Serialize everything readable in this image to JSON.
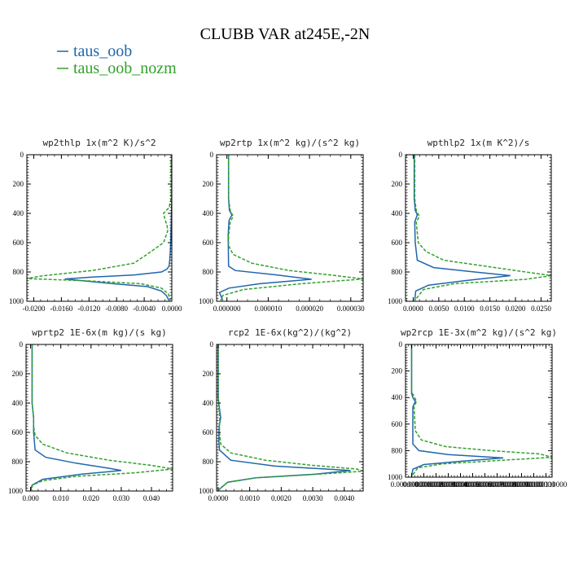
{
  "figure_title": "CLUBB VAR at245E,-2N",
  "legend": [
    {
      "label": "taus_oob",
      "color": "#2166ac"
    },
    {
      "label": "taus_oob_nozm",
      "color": "#33a02c"
    }
  ],
  "chart_data": [
    {
      "type": "line",
      "title": "wp2thlp  1x(m^2 K)/s^2",
      "xlim": [
        -0.021,
        0.0
      ],
      "ylim": [
        1000,
        0
      ],
      "xticks": [
        -0.02,
        -0.016,
        -0.012,
        -0.008,
        -0.004,
        0.0
      ],
      "xtick_labels": [
        "-0.0200",
        "-0.0160",
        "-0.0120",
        "-0.0080",
        "-0.0040",
        "0.0000"
      ],
      "yticks": [
        0,
        200,
        400,
        600,
        800,
        1000
      ],
      "ytick_labels": [
        "0",
        "200",
        "400",
        "600",
        "800",
        "1000"
      ],
      "series": [
        {
          "name": "taus_oob",
          "style": "solid",
          "x": [
            0,
            0,
            -0.0001,
            -0.0002,
            -0.0003,
            -0.0004,
            -0.0007,
            -0.0015,
            -0.0054,
            -0.0115,
            -0.0155,
            -0.0085,
            -0.0035,
            -0.0015,
            -0.0008,
            -0.0004
          ],
          "y": [
            0,
            300,
            500,
            650,
            720,
            760,
            780,
            800,
            820,
            835,
            848,
            880,
            900,
            930,
            960,
            995
          ]
        },
        {
          "name": "taus_oob_nozm",
          "style": "dashed",
          "x": [
            -0.0001,
            -0.0001,
            -0.0004,
            -0.0012,
            -0.001,
            -0.0007,
            -0.0006,
            -0.0012,
            -0.0024,
            -0.0036,
            -0.0055,
            -0.0115,
            -0.0185,
            -0.0211,
            -0.0125,
            -0.0045,
            -0.0015,
            -0.0005,
            -0.0002
          ],
          "y": [
            0,
            300,
            360,
            400,
            440,
            480,
            520,
            600,
            640,
            680,
            740,
            790,
            825,
            845,
            860,
            880,
            910,
            950,
            995
          ]
        }
      ]
    },
    {
      "type": "line",
      "title": "wp2rtp  1x(m^2 kg)/(s^2 kg)",
      "xlim": [
        -2.5e-06,
        3.3e-05
      ],
      "ylim": [
        1000,
        0
      ],
      "xticks": [
        0.0,
        1e-05,
        2e-05,
        3e-05
      ],
      "xtick_labels": [
        "0.000000",
        "0.000010",
        "0.000020",
        "0.000030"
      ],
      "yticks": [
        0,
        200,
        400,
        600,
        800,
        1000
      ],
      "ytick_labels": [
        "0",
        "200",
        "400",
        "600",
        "800",
        "1000"
      ],
      "series": [
        {
          "name": "taus_oob",
          "style": "solid",
          "x": [
            4e-07,
            4e-07,
            6e-07,
            1.2e-06,
            5e-07,
            3e-07,
            4e-07,
            2e-06,
            1.2e-05,
            2.05e-05,
            8e-06,
            5e-07,
            -1.8e-06,
            -1e-06
          ],
          "y": [
            0,
            300,
            380,
            410,
            450,
            550,
            760,
            790,
            820,
            850,
            880,
            910,
            940,
            995
          ]
        },
        {
          "name": "taus_oob_nozm",
          "style": "dashed",
          "x": [
            4e-07,
            4e-07,
            8e-07,
            1.5e-06,
            8e-07,
            4e-07,
            4e-07,
            1.5e-06,
            6e-06,
            1.5e-05,
            2.5e-05,
            3.3e-05,
            1.8e-05,
            4e-06,
            -1e-06,
            -1.5e-06
          ],
          "y": [
            0,
            300,
            380,
            420,
            460,
            550,
            620,
            680,
            740,
            790,
            820,
            848,
            880,
            920,
            960,
            995
          ]
        }
      ]
    },
    {
      "type": "line",
      "title": "wpthlp2  1x(m K^2)/s",
      "xlim": [
        -0.0015,
        0.027
      ],
      "ylim": [
        1000,
        0
      ],
      "xticks": [
        0.0,
        0.005,
        0.01,
        0.015,
        0.02,
        0.025
      ],
      "xtick_labels": [
        "0.0000",
        "0.0050",
        "0.0100",
        "0.0150",
        "0.0200",
        "0.0250"
      ],
      "yticks": [
        0,
        200,
        400,
        600,
        800,
        1000
      ],
      "ytick_labels": [
        "0",
        "200",
        "400",
        "600",
        "800",
        "1000"
      ],
      "series": [
        {
          "name": "taus_oob",
          "style": "solid",
          "x": [
            0.0002,
            0.0002,
            0.0004,
            0.0008,
            0.0003,
            0.0004,
            0.0008,
            0.004,
            0.012,
            0.019,
            0.01,
            0.003,
            0.0005,
            0.0003
          ],
          "y": [
            0,
            300,
            380,
            410,
            460,
            600,
            720,
            770,
            800,
            825,
            860,
            890,
            930,
            995
          ]
        },
        {
          "name": "taus_oob_nozm",
          "style": "dashed",
          "x": [
            0.0003,
            0.0003,
            0.0006,
            0.0012,
            0.0006,
            0.001,
            0.0025,
            0.006,
            0.014,
            0.022,
            0.027,
            0.022,
            0.008,
            0.002,
            0.0003
          ],
          "y": [
            0,
            300,
            380,
            420,
            460,
            600,
            660,
            720,
            760,
            800,
            825,
            850,
            880,
            920,
            995
          ]
        }
      ]
    },
    {
      "type": "line",
      "title": "wprtp2  1E-6x(m kg)/(s kg)",
      "xlim": [
        -0.0015,
        0.047
      ],
      "ylim": [
        1000,
        0
      ],
      "xticks": [
        0.0,
        0.01,
        0.02,
        0.03,
        0.04
      ],
      "xtick_labels": [
        "0.000",
        "0.010",
        "0.020",
        "0.030",
        "0.040"
      ],
      "yticks": [
        0,
        200,
        400,
        600,
        800,
        1000
      ],
      "ytick_labels": [
        "0",
        "200",
        "400",
        "600",
        "800",
        "1000"
      ],
      "series": [
        {
          "name": "taus_oob",
          "style": "solid",
          "x": [
            0.0005,
            0.0005,
            0.001,
            0.001,
            0.0015,
            0.005,
            0.015,
            0.026,
            0.03,
            0.017,
            0.004,
            0.0005,
            0.0
          ],
          "y": [
            0,
            400,
            500,
            600,
            720,
            770,
            810,
            845,
            860,
            885,
            920,
            960,
            995
          ]
        },
        {
          "name": "taus_oob_nozm",
          "style": "dashed",
          "x": [
            0.0005,
            0.0005,
            0.001,
            0.001,
            0.0015,
            0.004,
            0.012,
            0.026,
            0.04,
            0.047,
            0.035,
            0.015,
            0.004,
            0.0006,
            0.0003
          ],
          "y": [
            0,
            400,
            500,
            560,
            620,
            680,
            740,
            790,
            825,
            850,
            875,
            900,
            930,
            960,
            995
          ]
        }
      ]
    },
    {
      "type": "line",
      "title": "rcp2  1E-6x(kg^2)/(kg^2)",
      "xlim": [
        -5e-05,
        0.0046
      ],
      "ylim": [
        1000,
        0
      ],
      "xticks": [
        0.0,
        0.001,
        0.002,
        0.003,
        0.004
      ],
      "xtick_labels": [
        "0.0000",
        "0.0010",
        "0.0020",
        "0.0030",
        "0.0040"
      ],
      "yticks": [
        0,
        200,
        400,
        600,
        800,
        1000
      ],
      "ytick_labels": [
        "0",
        "200",
        "400",
        "600",
        "800",
        "1000"
      ],
      "series": [
        {
          "name": "taus_oob",
          "style": "solid",
          "x": [
            0.0,
            0.0,
            3e-05,
            8e-05,
            3e-05,
            2e-05,
            4e-05,
            0.0004,
            0.0018,
            0.0042,
            0.0031,
            0.0012,
            0.0003,
            0.0
          ],
          "y": [
            0,
            360,
            420,
            500,
            560,
            650,
            720,
            790,
            830,
            860,
            885,
            910,
            940,
            995
          ]
        },
        {
          "name": "taus_oob_nozm",
          "style": "dashed",
          "x": [
            0.0,
            0.0,
            2e-05,
            5e-05,
            4e-05,
            8e-05,
            0.0004,
            0.0015,
            0.003,
            0.0044,
            0.0046,
            0.0032,
            0.0012,
            0.0003,
            0.0
          ],
          "y": [
            0,
            360,
            420,
            500,
            600,
            680,
            740,
            790,
            825,
            850,
            865,
            885,
            910,
            940,
            995
          ]
        }
      ]
    },
    {
      "type": "line",
      "title": "wp2rcp  1E-3x(m^2 kg)/(s^2 kg)",
      "xlim": [
        -5e-07,
        1.15e-05
      ],
      "ylim": [
        1000,
        0
      ],
      "xticks": [
        0.0,
        1e-06,
        2e-06,
        3e-06,
        4e-06,
        5e-06,
        6e-06,
        7e-06,
        8e-06,
        9e-06,
        1e-05,
        1.1e-05
      ],
      "xtick_labels": [
        "0.0000000000",
        "0.0000010000",
        "0.0000020000",
        "0.0000030000",
        "0.0000040000",
        "0.0000050000",
        "0.0000060000",
        "0.0000070000",
        "0.0000080000",
        "0.0000090000",
        "0.0000100000",
        "0.0000110000"
      ],
      "yticks": [
        0,
        200,
        400,
        600,
        800,
        1000
      ],
      "ytick_labels": [
        "0",
        "200",
        "400",
        "600",
        "800",
        "1000"
      ],
      "series": [
        {
          "name": "taus_oob",
          "style": "solid",
          "x": [
            0.0,
            0.0,
            0.0,
            1e-07,
            3e-07,
            1e-07,
            1e-07,
            6e-07,
            3e-06,
            7.5e-06,
            4e-06,
            1e-06,
            1e-07,
            0.0
          ],
          "y": [
            0,
            330,
            370,
            400,
            430,
            470,
            750,
            800,
            830,
            855,
            880,
            905,
            940,
            995
          ]
        },
        {
          "name": "taus_oob_nozm",
          "style": "dashed",
          "x": [
            0.0,
            0.0,
            0.0,
            2e-07,
            4e-07,
            2e-07,
            3e-07,
            8e-07,
            2.8e-06,
            6.5e-06,
            1.05e-05,
            1.15e-05,
            7e-06,
            2.5e-06,
            5e-07,
            0.0
          ],
          "y": [
            0,
            330,
            360,
            390,
            430,
            470,
            650,
            720,
            770,
            800,
            825,
            850,
            875,
            900,
            930,
            995
          ]
        }
      ]
    }
  ]
}
